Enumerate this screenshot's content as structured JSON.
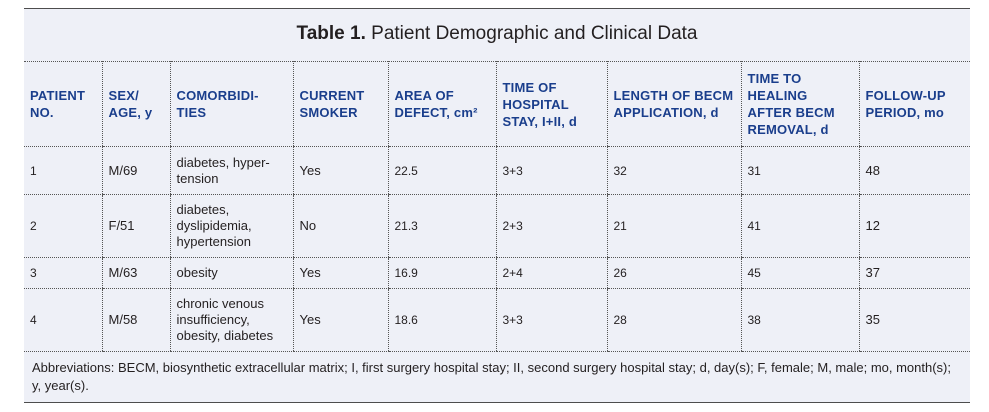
{
  "title": {
    "label": "Table 1.",
    "text": "Patient Demographic and Clinical Data"
  },
  "columns": [
    "PATIENT NO.",
    "SEX/ AGE, y",
    "COMORBIDI-TIES",
    "CURRENT SMOKER",
    "AREA OF DEFECT, cm²",
    "TIME OF HOSPITAL STAY, I+II, d",
    "LENGTH OF BECM APPLICATION, d",
    "TIME TO HEALING AFTER BECM REMOVAL, d",
    "FOLLOW-UP PERIOD, mo"
  ],
  "rows": [
    {
      "patient": "1",
      "sex_age": "M/69",
      "comorbidities": "diabetes, hyper-tension",
      "smoker": "Yes",
      "area": "22.5",
      "stay": "3+3",
      "becm": "32",
      "healing": "31",
      "followup": "48"
    },
    {
      "patient": "2",
      "sex_age": "F/51",
      "comorbidities": "diabetes, dyslipidemia, hypertension",
      "smoker": "No",
      "area": "21.3",
      "stay": "2+3",
      "becm": "21",
      "healing": "41",
      "followup": "12"
    },
    {
      "patient": "3",
      "sex_age": "M/63",
      "comorbidities": "obesity",
      "smoker": "Yes",
      "area": "16.9",
      "stay": "2+4",
      "becm": "26",
      "healing": "45",
      "followup": "37"
    },
    {
      "patient": "4",
      "sex_age": "M/58",
      "comorbidities": "chronic venous insufficiency, obesity, diabetes",
      "smoker": "Yes",
      "area": "18.6",
      "stay": "3+3",
      "becm": "28",
      "healing": "38",
      "followup": "35"
    }
  ],
  "abbreviations": "Abbreviations: BECM, biosynthetic extracellular matrix; I, first surgery hospital stay; II, second surgery hospital stay; d, day(s); F, female; M, male; mo, month(s); y, year(s).",
  "colors": {
    "header_text": "#1a3e8c",
    "background": "#eef0f7",
    "body_text": "#231f20"
  }
}
